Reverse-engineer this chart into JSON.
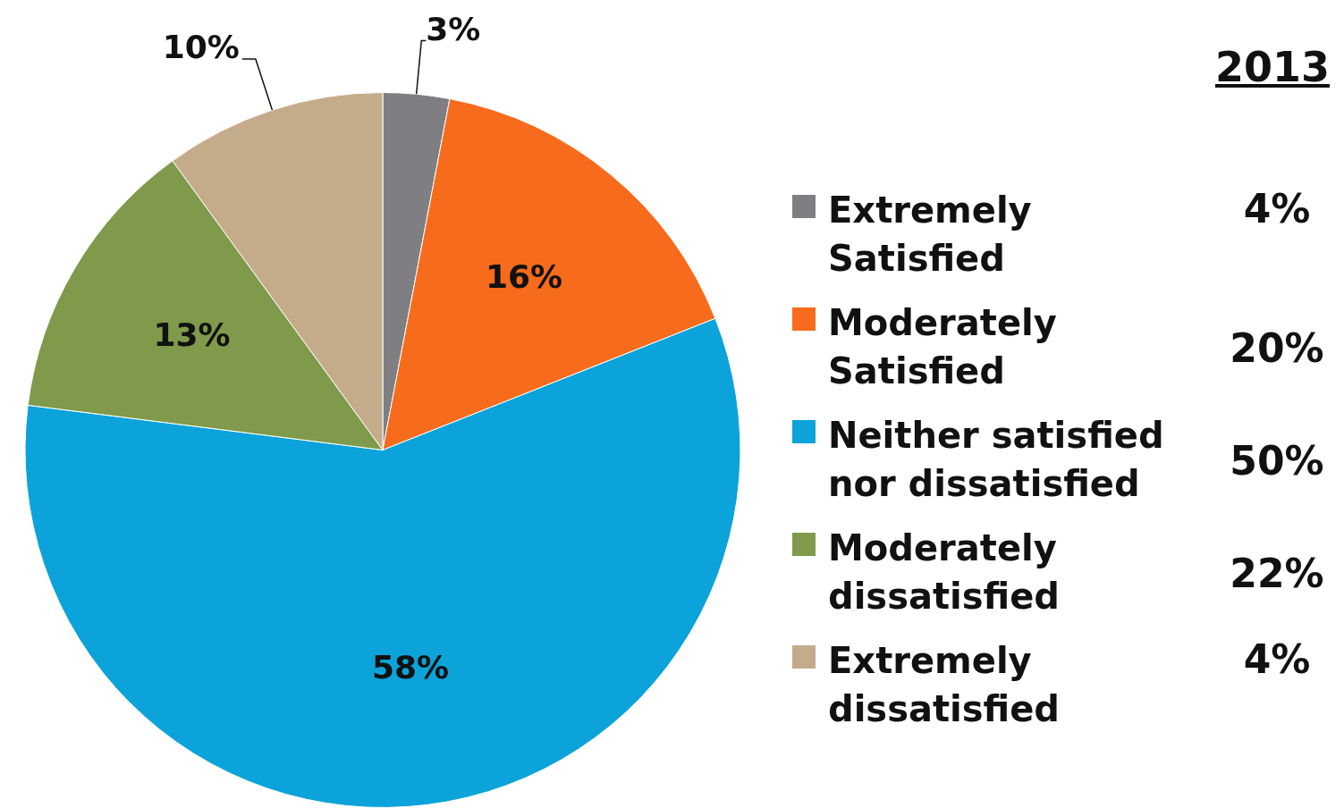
{
  "chart_data": [
    {
      "type": "pie",
      "categories": [
        "Extremely Satisfied",
        "Moderately Satisfied",
        "Neither satisfied nor dissatisfied",
        "Moderately dissatisfied",
        "Extremely dissatisfied"
      ],
      "values": [
        3,
        16,
        58,
        13,
        10
      ],
      "value_labels": [
        "3%",
        "16%",
        "58%",
        "13%",
        "10%"
      ],
      "colors": [
        "#7f7f83",
        "#f76b1c",
        "#0ba3d9",
        "#7f9a4b",
        "#c4ac8a"
      ],
      "legend": "right"
    },
    {
      "type": "other",
      "title": "2013",
      "values": [
        4,
        20,
        50,
        22,
        4
      ],
      "value_labels": [
        "4%",
        "20%",
        "50%",
        "22%",
        "4%"
      ]
    }
  ]
}
